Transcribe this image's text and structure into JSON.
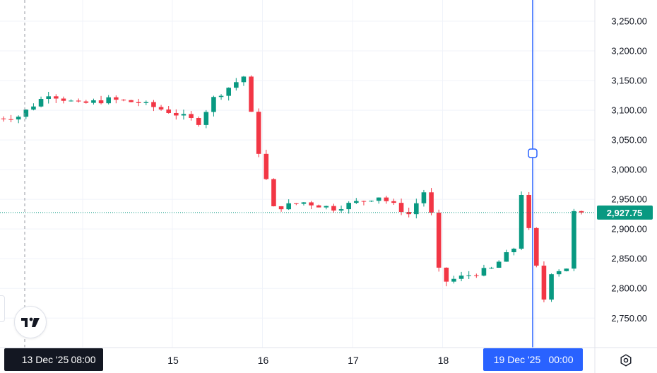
{
  "colors": {
    "up": "#089981",
    "down": "#f23645",
    "grid": "#f0f3fa",
    "axis_text": "#131722",
    "crosshair": "#2962ff",
    "last_price_bg": "#089981",
    "dark_label_bg": "#131722",
    "selected_label_bg": "#2962ff"
  },
  "crosshair_left": {
    "date": "13 Dec '25",
    "time": "08:00"
  },
  "crosshair_right": {
    "date": "19 Dec '25",
    "time": "00:00"
  },
  "last_price_label": "2,927.75",
  "logo_icon": "tradingview-logo",
  "settings_icon": "gear-icon",
  "chart_data": {
    "type": "candlestick",
    "instrument": "",
    "ylim": [
      2715,
      3280
    ],
    "y_ticks": [
      2750,
      2800,
      2850,
      2900,
      2950,
      3000,
      3050,
      3100,
      3150,
      3200,
      3250
    ],
    "y_tick_labels": [
      "2,750.00",
      "2,800.00",
      "2,850.00",
      "2,900.00",
      "2,950.00",
      "3,000.00",
      "3,050.00",
      "3,100.00",
      "3,150.00",
      "3,200.00",
      "3,250.00"
    ],
    "x_ticks": [
      {
        "label": "15",
        "date": "2025-12-15"
      },
      {
        "label": "16",
        "date": "2025-12-16"
      },
      {
        "label": "17",
        "date": "2025-12-17"
      },
      {
        "label": "18",
        "date": "2025-12-18"
      }
    ],
    "last_price": 2927.75,
    "crosshair_value": 3027.5,
    "grid": true,
    "waypoints": [
      {
        "t": "2025-12-13 00:00",
        "v": 3085
      },
      {
        "t": "2025-12-13 08:00",
        "v": 3090
      },
      {
        "t": "2025-12-13 16:00",
        "v": 3128
      },
      {
        "t": "2025-12-14 00:00",
        "v": 3110
      },
      {
        "t": "2025-12-14 08:00",
        "v": 3118
      },
      {
        "t": "2025-12-14 16:00",
        "v": 3113
      },
      {
        "t": "2025-12-15 00:00",
        "v": 3098
      },
      {
        "t": "2025-12-15 08:00",
        "v": 3080
      },
      {
        "t": "2025-12-15 12:00",
        "v": 3120
      },
      {
        "t": "2025-12-15 20:00",
        "v": 3157
      },
      {
        "t": "2025-12-16 00:00",
        "v": 3030
      },
      {
        "t": "2025-12-16 04:00",
        "v": 2935
      },
      {
        "t": "2025-12-16 12:00",
        "v": 2945
      },
      {
        "t": "2025-12-16 20:00",
        "v": 2935
      },
      {
        "t": "2025-12-17 08:00",
        "v": 2955
      },
      {
        "t": "2025-12-17 16:00",
        "v": 2925
      },
      {
        "t": "2025-12-17 21:00",
        "v": 2972
      },
      {
        "t": "2025-12-18 00:00",
        "v": 2830
      },
      {
        "t": "2025-12-18 02:00",
        "v": 2812
      },
      {
        "t": "2025-12-18 14:00",
        "v": 2833
      },
      {
        "t": "2025-12-18 20:00",
        "v": 2868
      },
      {
        "t": "2025-12-18 22:00",
        "v": 2960
      },
      {
        "t": "2025-12-19 02:00",
        "v": 2835
      },
      {
        "t": "2025-12-19 04:00",
        "v": 2782
      },
      {
        "t": "2025-12-19 06:00",
        "v": 2828
      },
      {
        "t": "2025-12-19 10:00",
        "v": 2835
      },
      {
        "t": "2025-12-19 12:00",
        "v": 2927.75
      }
    ]
  }
}
